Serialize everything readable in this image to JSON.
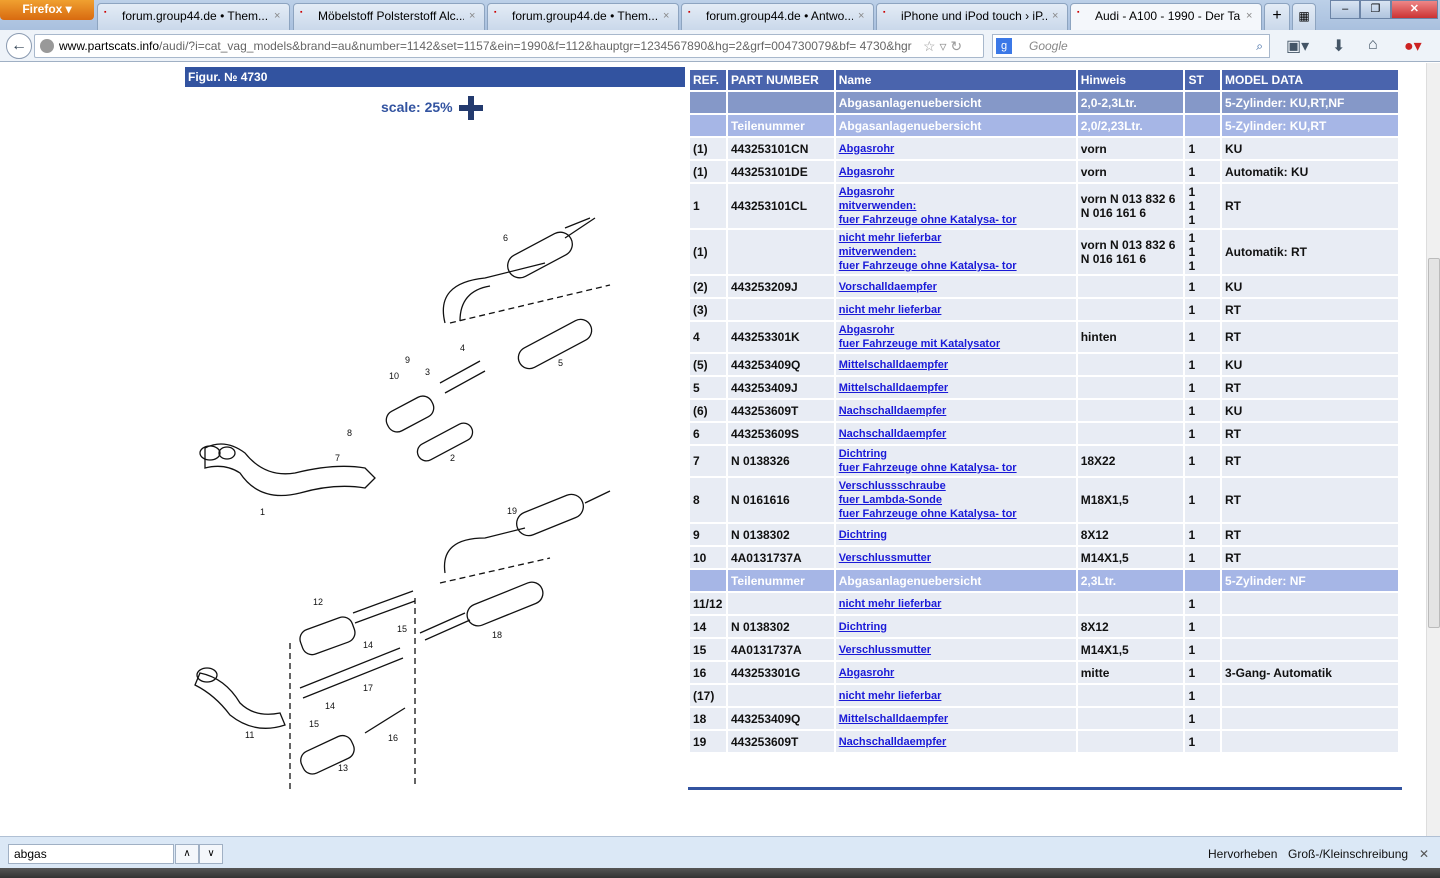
{
  "browser": {
    "menu_label": "Firefox",
    "tabs": [
      {
        "title": "forum.group44.de • Them...",
        "favicon": "group44-icon"
      },
      {
        "title": "Möbelstoff Polsterstoff Alc...",
        "favicon": "shop-bag-icon"
      },
      {
        "title": "forum.group44.de • Them...",
        "favicon": "group44-icon"
      },
      {
        "title": "forum.group44.de • Antwo...",
        "favicon": "group44-icon"
      },
      {
        "title": "iPhone und iPod touch › iP...",
        "favicon": "ifun-icon"
      },
      {
        "title": "Audi - A100 - 1990 - Der Ta...",
        "favicon": "partscats-icon",
        "active": true
      }
    ],
    "url_domain": "www.partscats.info",
    "url_path": "/audi/?i=cat_vag_models&brand=au&number=1142&set=1157&ein=1990&f=112&hauptgr=1234567890&hg=2&grf=004730079&bf= 4730&hgr",
    "search_placeholder": "Google"
  },
  "figure": {
    "title": "Figur. № 4730",
    "scale": "scale: 25%",
    "callouts": [
      "1",
      "2",
      "3",
      "4",
      "5",
      "6",
      "7",
      "8",
      "9",
      "10",
      "11",
      "12",
      "13",
      "14",
      "14",
      "15",
      "15",
      "16",
      "17",
      "18",
      "19"
    ]
  },
  "table": {
    "headers": [
      "REF.",
      "PART NUMBER",
      "Name",
      "Hinweis",
      "ST",
      "MODEL DATA"
    ],
    "rows": [
      {
        "type": "g1",
        "ref": "",
        "part": "",
        "name": [
          "Abgasanlagenuebersicht"
        ],
        "hinweis": "2,0-2,3Ltr.",
        "st": "",
        "model": "5-Zylinder: KU,RT,NF"
      },
      {
        "type": "g2",
        "ref": "",
        "part": "Teilenummer",
        "name": [
          "Abgasanlagenuebersicht"
        ],
        "hinweis": "2,0/2,23Ltr.",
        "st": "",
        "model": "5-Zylinder: KU,RT"
      },
      {
        "type": "d",
        "ref": "(1)",
        "part": "443253101CN",
        "name": [
          "Abgasrohr"
        ],
        "hinweis": "vorn",
        "st": "1",
        "model": "KU"
      },
      {
        "type": "d",
        "ref": "(1)",
        "part": "443253101DE",
        "name": [
          "Abgasrohr"
        ],
        "hinweis": "vorn",
        "st": "1",
        "model": "Automatik: KU"
      },
      {
        "type": "d",
        "ref": "1",
        "part": "443253101CL",
        "name": [
          "Abgasrohr",
          "mitverwenden:",
          "fuer Fahrzeuge ohne Katalysa- tor"
        ],
        "hinweis": "vorn N 013 832 6\nN 016 161 6",
        "st": "1\n1\n1",
        "model": "RT"
      },
      {
        "type": "d",
        "ref": "(1)",
        "part": "",
        "name": [
          "nicht mehr lieferbar",
          "mitverwenden:",
          "fuer Fahrzeuge ohne Katalysa- tor"
        ],
        "hinweis": "vorn N 013 832 6\nN 016 161 6",
        "st": "1\n1\n1",
        "model": "Automatik: RT"
      },
      {
        "type": "d",
        "ref": "(2)",
        "part": "443253209J",
        "name": [
          "Vorschalldaempfer"
        ],
        "hinweis": "",
        "st": "1",
        "model": "KU"
      },
      {
        "type": "d",
        "ref": "(3)",
        "part": "",
        "name": [
          "nicht mehr lieferbar"
        ],
        "hinweis": "",
        "st": "1",
        "model": "RT"
      },
      {
        "type": "d",
        "ref": "4",
        "part": "443253301K",
        "name": [
          "Abgasrohr",
          "fuer Fahrzeuge mit Katalysator"
        ],
        "hinweis": "hinten",
        "st": "1",
        "model": "RT"
      },
      {
        "type": "d",
        "ref": "(5)",
        "part": "443253409Q",
        "name": [
          "Mittelschalldaempfer"
        ],
        "hinweis": "",
        "st": "1",
        "model": "KU"
      },
      {
        "type": "d",
        "ref": "5",
        "part": "443253409J",
        "name": [
          "Mittelschalldaempfer"
        ],
        "hinweis": "",
        "st": "1",
        "model": "RT"
      },
      {
        "type": "d",
        "ref": "(6)",
        "part": "443253609T",
        "name": [
          "Nachschalldaempfer"
        ],
        "hinweis": "",
        "st": "1",
        "model": "KU"
      },
      {
        "type": "d",
        "ref": "6",
        "part": "443253609S",
        "name": [
          "Nachschalldaempfer"
        ],
        "hinweis": "",
        "st": "1",
        "model": "RT"
      },
      {
        "type": "d",
        "ref": "7",
        "part": "N 0138326",
        "name": [
          "Dichtring",
          "fuer Fahrzeuge ohne Katalysa- tor"
        ],
        "hinweis": "18X22",
        "st": "1",
        "model": "RT"
      },
      {
        "type": "d",
        "ref": "8",
        "part": "N 0161616",
        "name": [
          "Verschlussschraube",
          "fuer Lambda-Sonde",
          "fuer Fahrzeuge ohne Katalysa- tor"
        ],
        "hinweis": "M18X1,5",
        "st": "1",
        "model": "RT"
      },
      {
        "type": "d",
        "ref": "9",
        "part": "N 0138302",
        "name": [
          "Dichtring"
        ],
        "hinweis": "8X12",
        "st": "1",
        "model": "RT"
      },
      {
        "type": "d",
        "ref": "10",
        "part": "4A0131737A",
        "name": [
          "Verschlussmutter"
        ],
        "hinweis": "M14X1,5",
        "st": "1",
        "model": "RT"
      },
      {
        "type": "g2",
        "ref": "",
        "part": "Teilenummer",
        "name": [
          "Abgasanlagenuebersicht"
        ],
        "hinweis": "2,3Ltr.",
        "st": "",
        "model": "5-Zylinder: NF"
      },
      {
        "type": "d",
        "ref": "11/12",
        "part": "",
        "name": [
          "nicht mehr lieferbar"
        ],
        "hinweis": "",
        "st": "1",
        "model": ""
      },
      {
        "type": "d",
        "ref": "14",
        "part": "N 0138302",
        "name": [
          "Dichtring"
        ],
        "hinweis": "8X12",
        "st": "1",
        "model": ""
      },
      {
        "type": "d",
        "ref": "15",
        "part": "4A0131737A",
        "name": [
          "Verschlussmutter"
        ],
        "hinweis": "M14X1,5",
        "st": "1",
        "model": ""
      },
      {
        "type": "d",
        "ref": "16",
        "part": "443253301G",
        "name": [
          "Abgasrohr"
        ],
        "hinweis": "mitte",
        "st": "1",
        "model": "3-Gang- Automatik"
      },
      {
        "type": "d",
        "ref": "(17)",
        "part": "",
        "name": [
          "nicht mehr lieferbar"
        ],
        "hinweis": "",
        "st": "1",
        "model": ""
      },
      {
        "type": "d",
        "ref": "18",
        "part": "443253409Q",
        "name": [
          "Mittelschalldaempfer"
        ],
        "hinweis": "",
        "st": "1",
        "model": ""
      },
      {
        "type": "d",
        "ref": "19",
        "part": "443253609T",
        "name": [
          "Nachschalldaempfer"
        ],
        "hinweis": "",
        "st": "1",
        "model": ""
      }
    ]
  },
  "findbar": {
    "value": "abgas",
    "highlight_label": "Hervorheben",
    "case_label": "Groß-/Kleinschreibung"
  }
}
